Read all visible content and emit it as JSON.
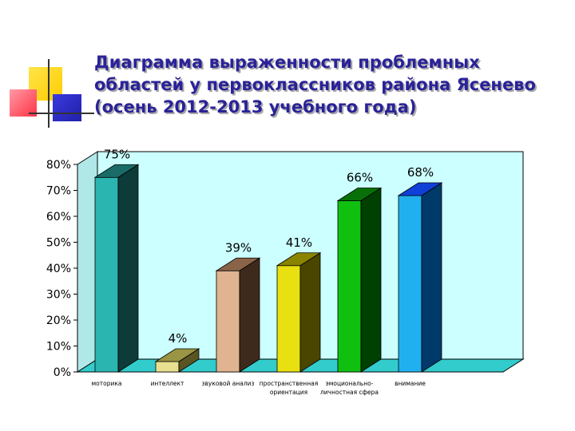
{
  "slide": {
    "title": "Диаграмма выраженности проблемных областей у первоклассников района Ясенево (осень 2012-2013 учебного года)"
  },
  "colors": {
    "title": "#2a2299",
    "plot_back": "#ccffff",
    "floor": "#33cccc"
  },
  "chart_data": {
    "type": "bar",
    "title": "",
    "xlabel": "",
    "ylabel": "",
    "ylim": [
      0,
      80
    ],
    "yticks": [
      "0%",
      "10%",
      "20%",
      "30%",
      "40%",
      "50%",
      "60%",
      "70%",
      "80%"
    ],
    "grid": false,
    "legend": "none",
    "three_d": true,
    "categories": [
      [
        "моторика"
      ],
      [
        "интеллект"
      ],
      [
        "звуковой анализ"
      ],
      [
        "пространственная",
        "ориентация"
      ],
      [
        "эмоционально-",
        "личностная сфера"
      ],
      [
        "внимание"
      ]
    ],
    "values": [
      75,
      4,
      39,
      41,
      66,
      68
    ],
    "value_labels": [
      "75%",
      "4%",
      "39%",
      "41%",
      "66%",
      "68%"
    ],
    "bar_colors": [
      {
        "front": "#2ab5b0",
        "side": "#0c3b3a",
        "top": "#1a6b68"
      },
      {
        "front": "#e8e090",
        "side": "#5a5422",
        "top": "#9a9444"
      },
      {
        "front": "#e0b490",
        "side": "#3e2a1c",
        "top": "#8a6448"
      },
      {
        "front": "#e8e010",
        "side": "#4a4600",
        "top": "#8a8400"
      },
      {
        "front": "#10c010",
        "side": "#004000",
        "top": "#087008"
      },
      {
        "front": "#20b0f0",
        "side": "#003a6a",
        "top": "#1040d8"
      }
    ]
  }
}
